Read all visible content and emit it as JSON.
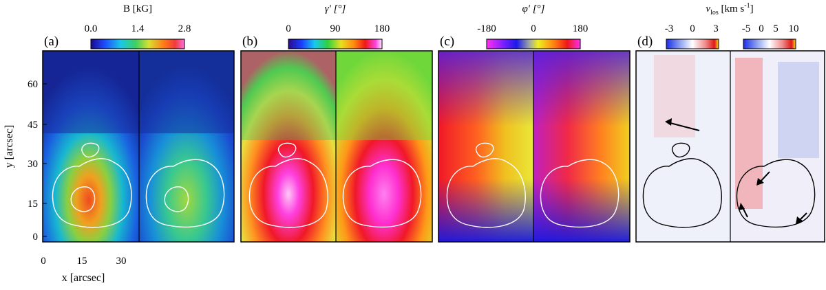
{
  "figure": {
    "panels": [
      {
        "id": "a",
        "label": "(a)",
        "colorbar": {
          "title": "B [kG]",
          "ticks": [
            "0.0",
            "1.4",
            "2.8"
          ],
          "scale": "jet"
        }
      },
      {
        "id": "b",
        "label": "(b)",
        "colorbar": {
          "title": "γ′ [°]",
          "ticks": [
            "0",
            "90",
            "180"
          ],
          "scale": "rainbow"
        }
      },
      {
        "id": "c",
        "label": "(c)",
        "colorbar": {
          "title": "φ′ [°]",
          "ticks": [
            "-180",
            "0",
            "180"
          ],
          "scale": "cyclic"
        }
      },
      {
        "id": "d",
        "label": "(d)",
        "colorbar_title": "v",
        "colorbar_title_sub": "los",
        "colorbar_title_rest": " [km s",
        "colorbar_title_sup": "-1",
        "colorbar_title_end": "]",
        "colorbars": [
          {
            "ticks": [
              "-3",
              "0",
              "3"
            ],
            "scale": "blue-white-red"
          },
          {
            "ticks": [
              "-5",
              "0",
              "5",
              "10"
            ],
            "scale": "blue-white-red"
          }
        ]
      }
    ],
    "y_axis": {
      "label": "y [arcsec]",
      "ticks": [
        "0",
        "15",
        "30",
        "45",
        "60"
      ]
    },
    "x_axis": {
      "label": "x [arcsec]",
      "ticks": [
        "0",
        "15",
        "30"
      ]
    }
  },
  "colors": {
    "frame": "#000000",
    "contour_light": "#ffffff",
    "contour_dark": "#000000"
  }
}
